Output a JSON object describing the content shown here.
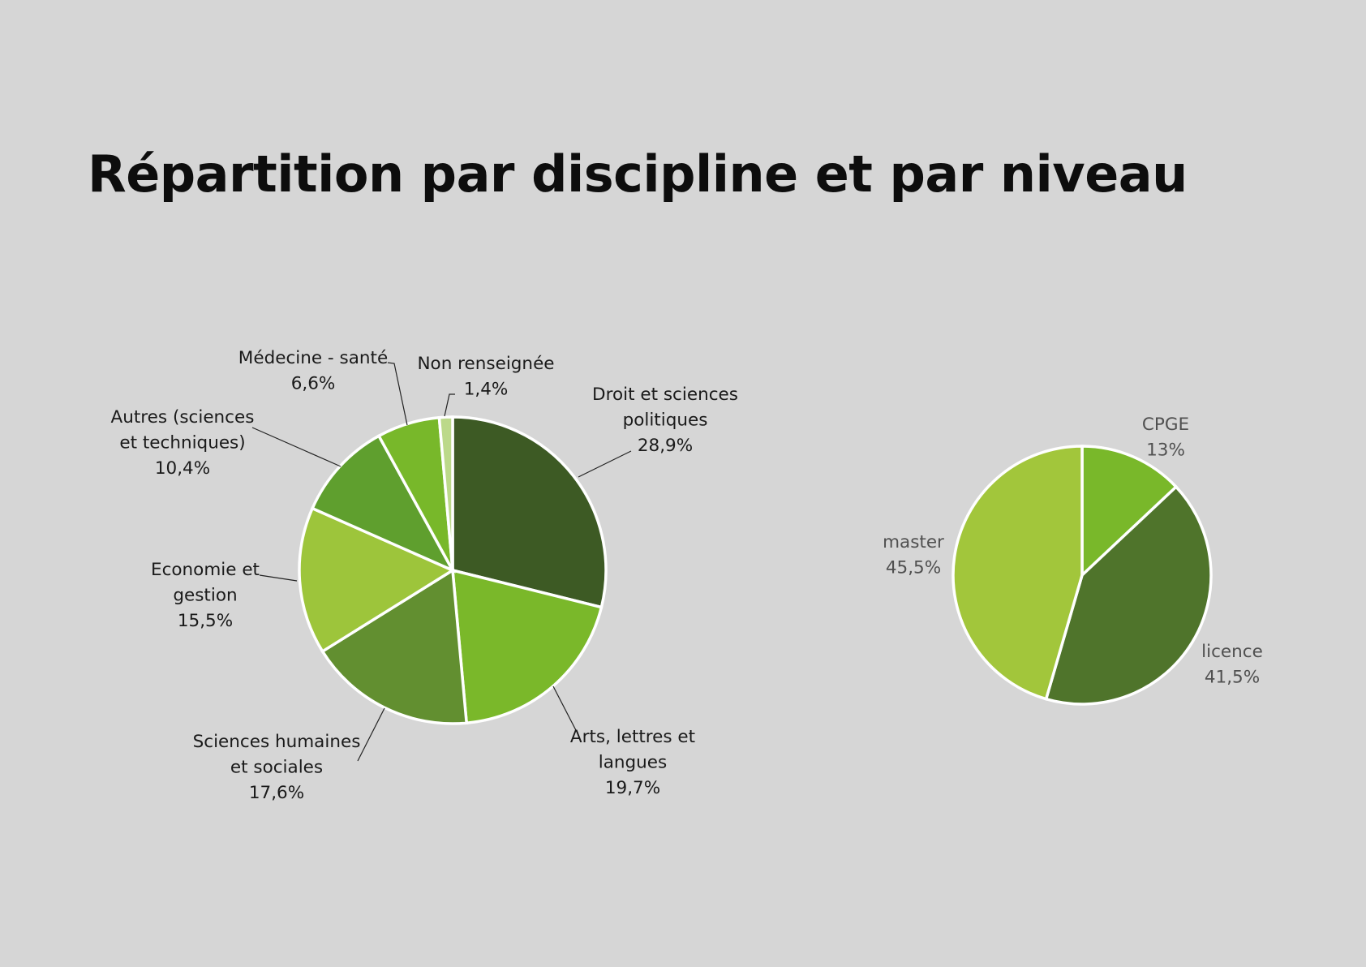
{
  "title": "Répartition par discipline et par niveau",
  "chart_data": [
    {
      "type": "pie",
      "name": "",
      "slices": [
        {
          "label": [
            "Droit et sciences",
            "politiques",
            "28,9%"
          ],
          "value": 28.9,
          "color": "#3d5a24"
        },
        {
          "label": [
            "Arts, lettres et",
            "langues",
            "19,7%"
          ],
          "value": 19.7,
          "color": "#7ab82a"
        },
        {
          "label": [
            "Sciences humaines",
            "et sociales",
            "17,6%"
          ],
          "value": 17.6,
          "color": "#628f30"
        },
        {
          "label": [
            "Economie et",
            "gestion",
            "15,5%"
          ],
          "value": 15.5,
          "color": "#9dc53b"
        },
        {
          "label": [
            "Autres (sciences",
            "et techniques)",
            "10,4%"
          ],
          "value": 10.4,
          "color": "#5f9f2e"
        },
        {
          "label": [
            "Médecine - santé",
            "6,6%"
          ],
          "value": 6.6,
          "color": "#78b82a"
        },
        {
          "label": [
            "Non renseignée",
            "1,4%"
          ],
          "value": 1.4,
          "color": "#bcd98a"
        }
      ]
    },
    {
      "type": "pie",
      "name": "",
      "slices": [
        {
          "label": [
            "CPGE",
            "13%"
          ],
          "value": 13,
          "color": "#79b82a"
        },
        {
          "label": [
            "licence",
            "41,5%"
          ],
          "value": 41.5,
          "color": "#4f742b"
        },
        {
          "label": [
            "master",
            "45,5%"
          ],
          "value": 45.5,
          "color": "#a2c63b"
        }
      ]
    }
  ]
}
